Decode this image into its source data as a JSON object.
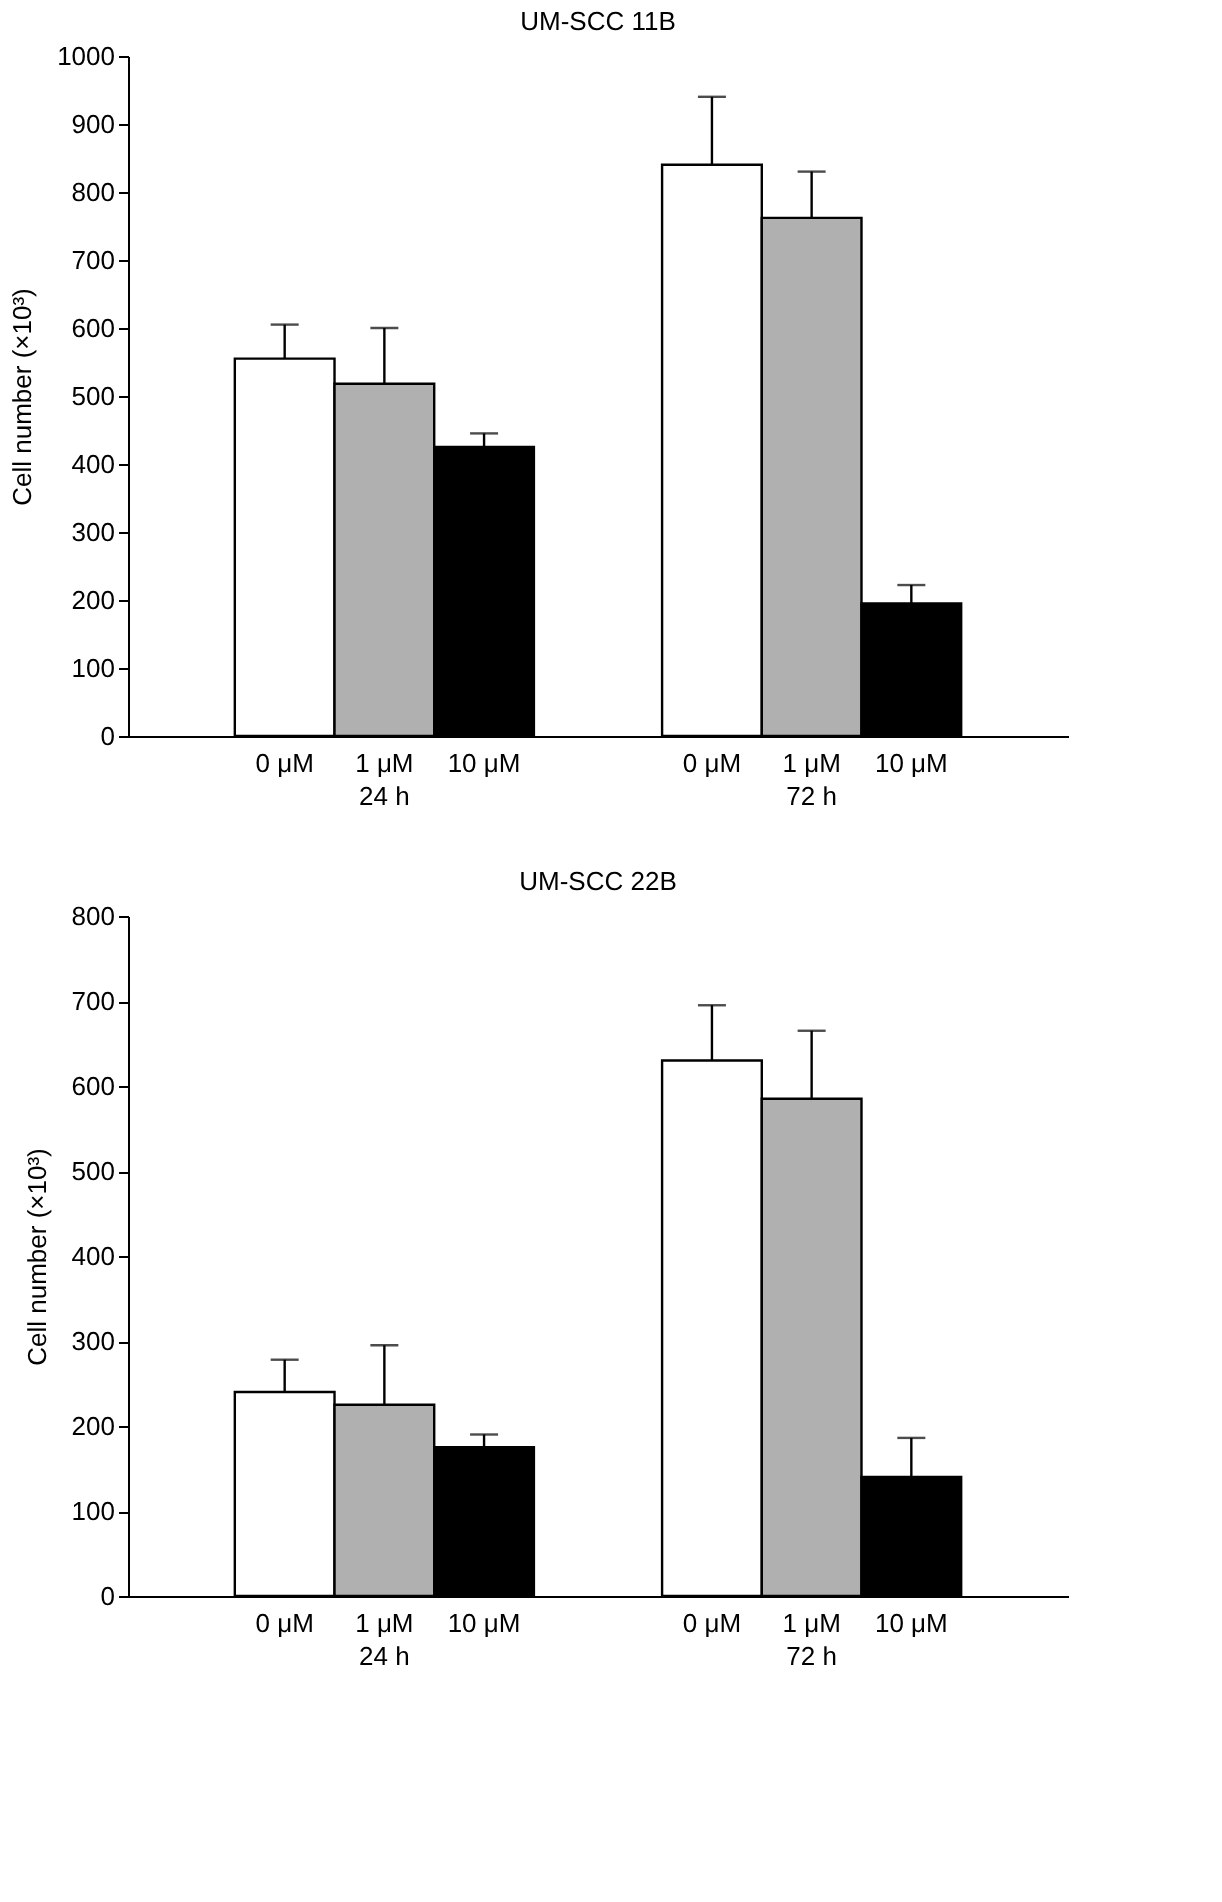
{
  "chart_data": [
    {
      "type": "bar",
      "title": "UM-SCC 11B",
      "ylabel": "Cell number (×10³)",
      "categories": [
        "24 h",
        "72 h"
      ],
      "ylim": [
        0,
        1000
      ],
      "yticks": [
        0,
        100,
        200,
        300,
        400,
        500,
        600,
        700,
        800,
        900,
        1000
      ],
      "grid": false,
      "legend": false,
      "series": [
        {
          "name": "0 μM",
          "color": "#ffffff",
          "values": [
            555,
            840
          ],
          "errors": [
            [
              555,
              605
            ],
            [
              840,
              940
            ]
          ]
        },
        {
          "name": "1 μM",
          "color": "#b0b0b0",
          "values": [
            518,
            762
          ],
          "errors": [
            [
              518,
              600
            ],
            [
              762,
              830
            ]
          ]
        },
        {
          "name": "10 μM",
          "color": "#000000",
          "values": [
            425,
            195
          ],
          "errors": [
            [
              425,
              445
            ],
            [
              195,
              222
            ]
          ]
        }
      ]
    },
    {
      "type": "bar",
      "title": "UM-SCC 22B",
      "ylabel": "Cell number (×10³)",
      "categories": [
        "24 h",
        "72 h"
      ],
      "ylim": [
        0,
        800
      ],
      "yticks": [
        0,
        100,
        200,
        300,
        400,
        500,
        600,
        700,
        800
      ],
      "grid": false,
      "legend": false,
      "series": [
        {
          "name": "0 μM",
          "color": "#ffffff",
          "values": [
            240,
            630
          ],
          "errors": [
            [
              240,
              278
            ],
            [
              630,
              695
            ]
          ]
        },
        {
          "name": "1 μM",
          "color": "#b0b0b0",
          "values": [
            225,
            585
          ],
          "errors": [
            [
              225,
              295
            ],
            [
              585,
              665
            ]
          ]
        },
        {
          "name": "10 μM",
          "color": "#000000",
          "values": [
            175,
            140
          ],
          "errors": [
            [
              175,
              190
            ],
            [
              140,
              186
            ]
          ]
        }
      ]
    }
  ]
}
